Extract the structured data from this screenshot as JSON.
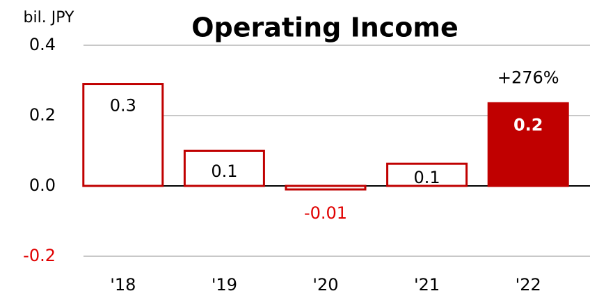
{
  "chart_data": {
    "type": "bar",
    "title": "Operating Income",
    "unit_label": "bil. JPY",
    "categories": [
      "'18",
      "'19",
      "'20",
      "'21",
      "'22"
    ],
    "values": [
      0.29,
      0.1,
      -0.01,
      0.063,
      0.235
    ],
    "value_labels": [
      "0.3",
      "0.1",
      "-0.01",
      "0.1",
      "0.2"
    ],
    "edge_color": "#c00000",
    "negative_color": "#e00000",
    "fills": [
      "#ffffff",
      "#ffffff",
      "#ffffff",
      "#ffffff",
      "#c00000"
    ],
    "annotation": "+276%",
    "ylim": [
      -0.2,
      0.4
    ],
    "yticks": [
      0.4,
      0.2,
      {
        "value": 0,
        "label": "0.0"
      },
      -0.2
    ],
    "grid": true
  }
}
